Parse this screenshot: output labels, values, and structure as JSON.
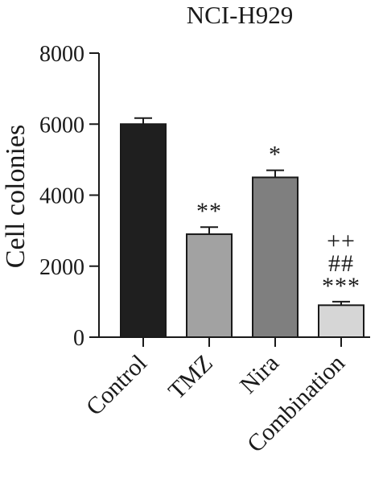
{
  "chart_data": {
    "type": "bar",
    "title": "NCI-H929",
    "xlabel": "",
    "ylabel": "Cell colonies",
    "ylim": [
      0,
      8000
    ],
    "yticks": [
      0,
      2000,
      4000,
      6000,
      8000
    ],
    "tick_labels": [
      "0",
      "2000",
      "4000",
      "6000",
      "8000"
    ],
    "categories": [
      "Control",
      "TMZ",
      "Nira",
      "Combination"
    ],
    "values": [
      6000,
      2900,
      4500,
      900
    ],
    "errors": [
      170,
      200,
      200,
      100
    ],
    "colors": [
      "#1f1f1f",
      "#a2a2a2",
      "#7f7f7f",
      "#d6d6d6"
    ],
    "annotations": [
      [],
      [
        "**"
      ],
      [
        "*"
      ],
      [
        "***",
        "##",
        "++"
      ]
    ],
    "grid": false,
    "legend": "none"
  }
}
